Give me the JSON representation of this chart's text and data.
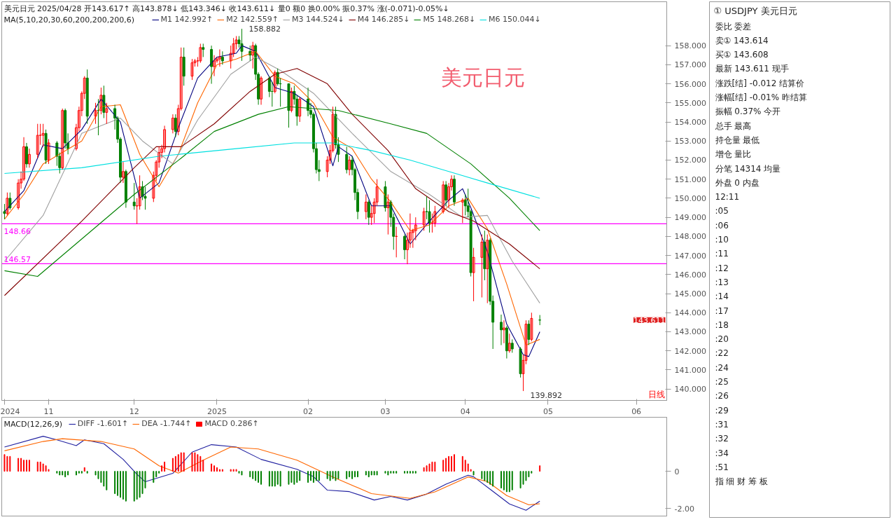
{
  "chart_data": [
    {
      "type": "candlestick",
      "title": "美元日元 2025/04/28 开143.617↑ 高143.878↓ 低143.346↓ 收143.611↓ 量0 额0 换0.00% 振0.37% 涨(-0.071)-0.05%↓",
      "legend_title": "MA(5,10,20,30,60,200,200,200,6)",
      "legend": "top left",
      "grid": false,
      "xlim": [
        "2024-10-15",
        "2025-06-13"
      ],
      "ylim": [
        139.4,
        160.3
      ],
      "xticks": [
        {
          "value": "2024-10-16",
          "label": "2024"
        },
        {
          "value": "2024-11-01",
          "label": "11"
        },
        {
          "value": "2024-12-02",
          "label": "12"
        },
        {
          "value": "2025-01-01",
          "label": "2025"
        },
        {
          "value": "2025-02-03",
          "label": "02"
        },
        {
          "value": "2025-03-03",
          "label": "03"
        },
        {
          "value": "2025-04-01",
          "label": "04"
        },
        {
          "value": "2025-05-01",
          "label": "05"
        },
        {
          "value": "2025-06-02",
          "label": "06"
        }
      ],
      "yticks": [
        {
          "value": 140,
          "label": "140.000"
        },
        {
          "value": 141,
          "label": "141.000"
        },
        {
          "value": 142,
          "label": "142.000"
        },
        {
          "value": 143,
          "label": "143.000"
        },
        {
          "value": 144,
          "label": "144.000"
        },
        {
          "value": 145,
          "label": "145.000"
        },
        {
          "value": 146,
          "label": "146.000"
        },
        {
          "value": 147,
          "label": "147.000"
        },
        {
          "value": 148,
          "label": "148.000"
        },
        {
          "value": 149,
          "label": "149.000"
        },
        {
          "value": 150,
          "label": "150.000"
        },
        {
          "value": 151,
          "label": "151.000"
        },
        {
          "value": 152,
          "label": "152.000"
        },
        {
          "value": 153,
          "label": "153.000"
        },
        {
          "value": 154,
          "label": "154.000"
        },
        {
          "value": 155,
          "label": "155.000"
        },
        {
          "value": 156,
          "label": "156.000"
        },
        {
          "value": 157,
          "label": "157.000"
        },
        {
          "value": 158,
          "label": "158.000"
        }
      ],
      "x": [
        "2024-10-16",
        "2024-10-17",
        "2024-10-18",
        "2024-10-21",
        "2024-10-22",
        "2024-10-23",
        "2024-10-24",
        "2024-10-25",
        "2024-10-28",
        "2024-10-29",
        "2024-10-30",
        "2024-10-31",
        "2024-11-01",
        "2024-11-04",
        "2024-11-05",
        "2024-11-06",
        "2024-11-07",
        "2024-11-08",
        "2024-11-11",
        "2024-11-12",
        "2024-11-13",
        "2024-11-14",
        "2024-11-15",
        "2024-11-18",
        "2024-11-19",
        "2024-11-20",
        "2024-11-21",
        "2024-11-22",
        "2024-11-25",
        "2024-11-26",
        "2024-11-27",
        "2024-11-28",
        "2024-11-29",
        "2024-12-02",
        "2024-12-03",
        "2024-12-04",
        "2024-12-05",
        "2024-12-06",
        "2024-12-09",
        "2024-12-10",
        "2024-12-11",
        "2024-12-12",
        "2024-12-13",
        "2024-12-16",
        "2024-12-17",
        "2024-12-18",
        "2024-12-19",
        "2024-12-20",
        "2024-12-23",
        "2024-12-24",
        "2024-12-25",
        "2024-12-26",
        "2024-12-27",
        "2024-12-30",
        "2024-12-31",
        "2025-01-01",
        "2025-01-02",
        "2025-01-03",
        "2025-01-06",
        "2025-01-07",
        "2025-01-08",
        "2025-01-09",
        "2025-01-10",
        "2025-01-13",
        "2025-01-14",
        "2025-01-15",
        "2025-01-16",
        "2025-01-17",
        "2025-01-20",
        "2025-01-21",
        "2025-01-22",
        "2025-01-23",
        "2025-01-24",
        "2025-01-27",
        "2025-01-28",
        "2025-01-29",
        "2025-01-30",
        "2025-01-31",
        "2025-02-03",
        "2025-02-04",
        "2025-02-05",
        "2025-02-06",
        "2025-02-07",
        "2025-02-10",
        "2025-02-11",
        "2025-02-12",
        "2025-02-13",
        "2025-02-14",
        "2025-02-17",
        "2025-02-18",
        "2025-02-19",
        "2025-02-20",
        "2025-02-21",
        "2025-02-24",
        "2025-02-25",
        "2025-02-26",
        "2025-02-27",
        "2025-02-28",
        "2025-03-03",
        "2025-03-04",
        "2025-03-05",
        "2025-03-06",
        "2025-03-07",
        "2025-03-10",
        "2025-03-11",
        "2025-03-12",
        "2025-03-13",
        "2025-03-14",
        "2025-03-17",
        "2025-03-18",
        "2025-03-19",
        "2025-03-20",
        "2025-03-21",
        "2025-03-24",
        "2025-03-25",
        "2025-03-26",
        "2025-03-27",
        "2025-03-28",
        "2025-03-31",
        "2025-04-01",
        "2025-04-02",
        "2025-04-03",
        "2025-04-04",
        "2025-04-07",
        "2025-04-08",
        "2025-04-09",
        "2025-04-10",
        "2025-04-11",
        "2025-04-14",
        "2025-04-15",
        "2025-04-16",
        "2025-04-17",
        "2025-04-18",
        "2025-04-21",
        "2025-04-22",
        "2025-04-23",
        "2025-04-24",
        "2025-04-25",
        "2025-04-28"
      ],
      "ohlc": [
        [
          149.3,
          149.7,
          148.9,
          149.2
        ],
        [
          149.2,
          150.3,
          149.1,
          150.0
        ],
        [
          150.0,
          150.3,
          149.4,
          149.5
        ],
        [
          149.5,
          151.0,
          149.4,
          150.8
        ],
        [
          150.8,
          151.4,
          150.5,
          151.0
        ],
        [
          151.0,
          153.2,
          150.9,
          152.7
        ],
        [
          152.7,
          152.9,
          151.6,
          151.8
        ],
        [
          151.8,
          152.6,
          151.6,
          152.3
        ],
        [
          152.3,
          153.9,
          152.1,
          153.3
        ],
        [
          153.3,
          153.9,
          152.8,
          153.3
        ],
        [
          153.3,
          153.9,
          152.7,
          153.4
        ],
        [
          153.4,
          153.6,
          151.8,
          152.0
        ],
        [
          152.0,
          153.1,
          151.8,
          152.9
        ],
        [
          152.9,
          153.0,
          151.7,
          152.2
        ],
        [
          152.2,
          152.4,
          151.3,
          151.6
        ],
        [
          151.6,
          154.7,
          151.5,
          154.6
        ],
        [
          154.6,
          154.7,
          152.6,
          152.9
        ],
        [
          152.9,
          153.4,
          152.3,
          152.6
        ],
        [
          152.6,
          153.9,
          152.5,
          153.7
        ],
        [
          153.7,
          154.8,
          153.5,
          154.6
        ],
        [
          154.6,
          155.6,
          154.3,
          155.5
        ],
        [
          155.5,
          156.4,
          155.2,
          156.3
        ],
        [
          156.3,
          156.75,
          153.9,
          154.3
        ],
        [
          154.3,
          155.0,
          153.9,
          154.6
        ],
        [
          154.6,
          155.2,
          153.3,
          154.6
        ],
        [
          154.6,
          155.8,
          154.4,
          155.4
        ],
        [
          155.4,
          155.9,
          154.2,
          154.5
        ],
        [
          154.5,
          155.0,
          153.9,
          154.7
        ],
        [
          154.7,
          154.9,
          153.6,
          154.2
        ],
        [
          154.2,
          154.3,
          152.9,
          153.1
        ],
        [
          153.1,
          153.2,
          150.8,
          151.1
        ],
        [
          151.1,
          151.9,
          150.8,
          151.4
        ],
        [
          151.4,
          151.5,
          149.5,
          149.8
        ],
        [
          149.8,
          150.8,
          149.4,
          149.6
        ],
        [
          149.6,
          150.0,
          148.65,
          149.6
        ],
        [
          149.6,
          151.2,
          149.4,
          150.6
        ],
        [
          150.6,
          150.9,
          149.9,
          150.1
        ],
        [
          150.1,
          150.6,
          149.4,
          150.0
        ],
        [
          150.0,
          151.4,
          149.8,
          151.2
        ],
        [
          151.2,
          152.0,
          150.9,
          151.9
        ],
        [
          151.9,
          152.7,
          151.6,
          152.4
        ],
        [
          152.4,
          152.8,
          152.1,
          152.6
        ],
        [
          152.6,
          153.8,
          152.4,
          153.6
        ],
        [
          153.6,
          154.4,
          153.4,
          154.2
        ],
        [
          154.2,
          154.4,
          153.2,
          153.5
        ],
        [
          153.5,
          154.9,
          153.3,
          154.7
        ],
        [
          154.7,
          157.9,
          154.6,
          157.4
        ],
        [
          157.4,
          157.9,
          155.9,
          156.4
        ],
        [
          156.4,
          157.3,
          156.2,
          157.1
        ],
        [
          157.1,
          157.3,
          156.9,
          157.2
        ],
        [
          157.2,
          157.4,
          156.9,
          157.2
        ],
        [
          157.2,
          158.1,
          157.1,
          157.9
        ],
        [
          157.9,
          158.1,
          157.4,
          157.8
        ],
        [
          157.8,
          158.0,
          156.0,
          156.9
        ],
        [
          156.9,
          157.5,
          156.4,
          157.2
        ],
        [
          157.2,
          157.4,
          157.1,
          157.3
        ],
        [
          157.3,
          157.8,
          156.9,
          157.4
        ],
        [
          157.4,
          157.7,
          157.0,
          157.2
        ],
        [
          157.2,
          158.0,
          156.8,
          157.6
        ],
        [
          157.6,
          158.4,
          157.4,
          158.1
        ],
        [
          158.1,
          158.5,
          157.8,
          158.3
        ],
        [
          158.3,
          158.5,
          157.9,
          158.1
        ],
        [
          158.1,
          158.882,
          157.2,
          157.7
        ],
        [
          157.7,
          158.0,
          157.2,
          157.5
        ],
        [
          157.5,
          158.2,
          156.8,
          158.0
        ],
        [
          158.0,
          158.1,
          156.2,
          156.5
        ],
        [
          156.5,
          156.6,
          154.9,
          155.2
        ],
        [
          155.2,
          156.4,
          154.9,
          156.3
        ],
        [
          156.3,
          156.4,
          155.3,
          155.6
        ],
        [
          155.6,
          156.1,
          154.8,
          155.6
        ],
        [
          155.6,
          156.7,
          155.5,
          156.6
        ],
        [
          156.6,
          156.8,
          155.9,
          156.0
        ],
        [
          156.0,
          156.3,
          154.8,
          156.0
        ],
        [
          156.0,
          156.0,
          153.7,
          154.6
        ],
        [
          154.6,
          155.8,
          154.5,
          155.6
        ],
        [
          155.6,
          155.9,
          154.9,
          155.2
        ],
        [
          155.2,
          155.4,
          153.8,
          154.3
        ],
        [
          154.3,
          155.3,
          154.0,
          155.2
        ],
        [
          155.2,
          155.8,
          154.3,
          154.6
        ],
        [
          154.6,
          155.0,
          154.2,
          154.4
        ],
        [
          154.4,
          154.5,
          152.4,
          152.6
        ],
        [
          152.6,
          152.9,
          151.3,
          151.5
        ],
        [
          151.5,
          152.0,
          150.9,
          151.4
        ],
        [
          151.4,
          152.2,
          151.1,
          152.0
        ],
        [
          152.0,
          152.8,
          151.8,
          152.5
        ],
        [
          152.5,
          154.8,
          152.4,
          154.4
        ],
        [
          154.4,
          154.8,
          152.6,
          152.8
        ],
        [
          152.8,
          153.2,
          151.9,
          152.3
        ],
        [
          152.3,
          152.7,
          151.3,
          151.5
        ],
        [
          151.5,
          152.2,
          151.2,
          152.0
        ],
        [
          152.0,
          152.2,
          151.2,
          151.5
        ],
        [
          151.5,
          151.6,
          149.9,
          150.3
        ],
        [
          150.3,
          150.5,
          148.9,
          149.3
        ],
        [
          149.3,
          150.2,
          148.9,
          149.8
        ],
        [
          149.8,
          149.9,
          148.6,
          149.0
        ],
        [
          149.0,
          149.6,
          148.6,
          149.2
        ],
        [
          149.2,
          150.0,
          148.7,
          149.8
        ],
        [
          149.8,
          151.0,
          149.6,
          150.6
        ],
        [
          150.6,
          150.9,
          149.3,
          149.5
        ],
        [
          149.5,
          150.2,
          148.1,
          149.8
        ],
        [
          149.8,
          149.9,
          148.5,
          149.0
        ],
        [
          149.0,
          149.2,
          147.3,
          148.0
        ],
        [
          148.0,
          148.5,
          146.9,
          148.0
        ],
        [
          148.0,
          148.1,
          146.8,
          147.3
        ],
        [
          147.3,
          148.2,
          146.54,
          147.8
        ],
        [
          147.8,
          149.2,
          147.4,
          148.2
        ],
        [
          148.2,
          148.4,
          147.4,
          148.3
        ],
        [
          148.3,
          149.0,
          147.8,
          148.6
        ],
        [
          148.6,
          149.5,
          148.3,
          149.3
        ],
        [
          149.3,
          150.1,
          148.9,
          149.3
        ],
        [
          149.3,
          149.9,
          148.2,
          148.7
        ],
        [
          148.7,
          149.2,
          148.2,
          148.7
        ],
        [
          148.7,
          149.6,
          148.5,
          149.3
        ],
        [
          149.3,
          150.9,
          149.2,
          150.7
        ],
        [
          150.7,
          150.9,
          149.6,
          149.9
        ],
        [
          149.9,
          150.8,
          149.5,
          150.6
        ],
        [
          150.6,
          151.2,
          150.4,
          151.0
        ],
        [
          151.0,
          151.2,
          149.6,
          149.8
        ],
        [
          149.8,
          150.0,
          148.7,
          149.9
        ],
        [
          149.9,
          150.2,
          149.1,
          149.6
        ],
        [
          149.6,
          150.5,
          149.0,
          149.3
        ],
        [
          149.3,
          149.4,
          145.9,
          146.1
        ],
        [
          146.1,
          147.4,
          144.6,
          146.9
        ],
        [
          146.9,
          148.1,
          144.8,
          147.7
        ],
        [
          147.7,
          148.3,
          145.7,
          146.3
        ],
        [
          146.3,
          148.1,
          144.5,
          147.8
        ],
        [
          147.8,
          147.9,
          144.4,
          144.6
        ],
        [
          144.6,
          144.9,
          142.1,
          143.5
        ],
        [
          143.5,
          143.9,
          142.3,
          143.1
        ],
        [
          143.1,
          143.6,
          142.4,
          143.2
        ],
        [
          143.2,
          143.3,
          141.6,
          142.0
        ],
        [
          142.0,
          142.9,
          141.9,
          142.4
        ],
        [
          142.4,
          142.6,
          141.9,
          142.1
        ],
        [
          142.1,
          142.2,
          140.6,
          140.8
        ],
        [
          140.8,
          141.8,
          139.892,
          141.5
        ],
        [
          141.5,
          143.6,
          141.3,
          143.4
        ],
        [
          143.4,
          143.6,
          142.3,
          142.6
        ],
        [
          142.6,
          144.0,
          142.5,
          143.7
        ],
        [
          143.617,
          143.878,
          143.346,
          143.611
        ]
      ],
      "colors": [
        "#008000",
        "#ff0000",
        "#008000",
        "#ff0000",
        "#ff0000",
        "#ff0000",
        "#008000",
        "#ff0000",
        "#ff0000",
        "#ff0000",
        "#ff0000",
        "#008000",
        "#ff0000",
        "#008000",
        "#008000",
        "#ff0000",
        "#008000",
        "#008000",
        "#ff0000",
        "#ff0000",
        "#ff0000",
        "#ff0000",
        "#008000",
        "#ff0000",
        "#008000",
        "#ff0000",
        "#008000",
        "#ff0000",
        "#008000",
        "#008000",
        "#008000",
        "#ff0000",
        "#008000",
        "#008000",
        "#ff0000",
        "#ff0000",
        "#008000",
        "#008000",
        "#ff0000",
        "#ff0000",
        "#ff0000",
        "#ff0000",
        "#ff0000",
        "#ff0000",
        "#008000",
        "#ff0000",
        "#ff0000",
        "#008000",
        "#ff0000",
        "#ff0000",
        "#ff0000",
        "#ff0000",
        "#008000",
        "#008000",
        "#ff0000",
        "#ff0000",
        "#ff0000",
        "#008000",
        "#ff0000",
        "#ff0000",
        "#ff0000",
        "#008000",
        "#008000",
        "#008000",
        "#ff0000",
        "#008000",
        "#008000",
        "#ff0000",
        "#008000",
        "#008000",
        "#ff0000",
        "#008000",
        "#008000",
        "#008000",
        "#ff0000",
        "#008000",
        "#008000",
        "#ff0000",
        "#008000",
        "#008000",
        "#008000",
        "#008000",
        "#008000",
        "#ff0000",
        "#ff0000",
        "#ff0000",
        "#008000",
        "#008000",
        "#008000",
        "#ff0000",
        "#008000",
        "#008000",
        "#008000",
        "#ff0000",
        "#008000",
        "#ff0000",
        "#ff0000",
        "#ff0000",
        "#008000",
        "#ff0000",
        "#008000",
        "#008000",
        "#ff0000",
        "#008000",
        "#ff0000",
        "#ff0000",
        "#ff0000",
        "#ff0000",
        "#ff0000",
        "#008000",
        "#008000",
        "#ff0000",
        "#ff0000",
        "#ff0000",
        "#008000",
        "#ff0000",
        "#ff0000",
        "#008000",
        "#ff0000",
        "#008000",
        "#008000",
        "#008000",
        "#ff0000",
        "#ff0000",
        "#008000",
        "#ff0000",
        "#008000",
        "#008000",
        "#008000",
        "#ff0000",
        "#008000",
        "#ff0000",
        "#008000",
        "#008000",
        "#ff0000",
        "#ff0000",
        "#008000",
        "#ff0000",
        "#008000"
      ],
      "series": [
        {
          "name": "M1 142.992↑",
          "type": "line",
          "color": "#00007f",
          "x": [
            "2024-10-16",
            "2024-10-23",
            "2024-10-30",
            "2024-11-06",
            "2024-11-13",
            "2024-11-20",
            "2024-11-27",
            "2024-12-04",
            "2024-12-11",
            "2024-12-18",
            "2024-12-25",
            "2025-01-01",
            "2025-01-08",
            "2025-01-10",
            "2025-01-15",
            "2025-01-22",
            "2025-01-29",
            "2025-02-05",
            "2025-02-12",
            "2025-02-14",
            "2025-02-19",
            "2025-02-26",
            "2025-03-05",
            "2025-03-12",
            "2025-03-19",
            "2025-03-26",
            "2025-03-31",
            "2025-04-03",
            "2025-04-09",
            "2025-04-16",
            "2025-04-22",
            "2025-04-24",
            "2025-04-28"
          ],
          "values": [
            149.3,
            150.4,
            152.8,
            152.6,
            153.6,
            155.2,
            154.0,
            150.0,
            150.8,
            153.7,
            156.3,
            157.4,
            157.6,
            158.0,
            157.7,
            155.8,
            155.5,
            154.8,
            151.7,
            152.7,
            152.2,
            149.6,
            149.6,
            147.6,
            148.8,
            149.9,
            150.5,
            149.5,
            147.2,
            143.4,
            141.8,
            141.7,
            143.0
          ]
        },
        {
          "name": "M2 142.559↑",
          "type": "line",
          "color": "#ff6600",
          "x": [
            "2024-10-16",
            "2024-10-23",
            "2024-10-30",
            "2024-11-06",
            "2024-11-13",
            "2024-11-20",
            "2024-11-27",
            "2024-12-04",
            "2024-12-11",
            "2024-12-18",
            "2024-12-25",
            "2025-01-01",
            "2025-01-08",
            "2025-01-15",
            "2025-01-22",
            "2025-01-29",
            "2025-02-05",
            "2025-02-12",
            "2025-02-19",
            "2025-02-26",
            "2025-03-05",
            "2025-03-12",
            "2025-03-19",
            "2025-03-26",
            "2025-04-02",
            "2025-04-09",
            "2025-04-16",
            "2025-04-23",
            "2025-04-28"
          ],
          "values": [
            148.9,
            150.2,
            151.8,
            152.4,
            153.0,
            154.8,
            154.9,
            152.3,
            150.6,
            152.3,
            155.0,
            157.0,
            157.3,
            157.7,
            156.4,
            156.0,
            155.0,
            153.2,
            152.6,
            151.0,
            149.8,
            148.3,
            148.6,
            149.6,
            150.0,
            148.4,
            145.5,
            142.3,
            142.6
          ]
        },
        {
          "name": "M3 144.524↓",
          "type": "line",
          "color": "#a0a0a0",
          "x": [
            "2024-10-16",
            "2024-10-30",
            "2024-11-13",
            "2024-11-27",
            "2024-12-05",
            "2024-12-16",
            "2024-12-25",
            "2025-01-06",
            "2025-01-15",
            "2025-01-24",
            "2025-02-05",
            "2025-02-19",
            "2025-03-05",
            "2025-03-19",
            "2025-03-31",
            "2025-04-09",
            "2025-04-18",
            "2025-04-28"
          ],
          "values": [
            146.7,
            149.1,
            153.4,
            154.2,
            153.0,
            151.8,
            154.1,
            156.5,
            157.4,
            156.7,
            155.5,
            153.4,
            151.4,
            150.2,
            149.0,
            149.1,
            146.7,
            144.5
          ]
        },
        {
          "name": "M4 146.285↓",
          "type": "line",
          "color": "#800000",
          "x": [
            "2024-10-16",
            "2024-11-13",
            "2024-12-02",
            "2024-12-10",
            "2024-12-19",
            "2024-12-31",
            "2025-01-13",
            "2025-01-22",
            "2025-01-30",
            "2025-02-10",
            "2025-02-19",
            "2025-03-04",
            "2025-03-14",
            "2025-03-26",
            "2025-04-04",
            "2025-04-17",
            "2025-04-28"
          ],
          "values": [
            144.9,
            148.8,
            151.6,
            152.7,
            152.7,
            153.9,
            155.6,
            156.5,
            156.8,
            156.0,
            154.4,
            152.5,
            150.5,
            149.3,
            148.8,
            147.6,
            146.3
          ]
        },
        {
          "name": "M5 148.268↓",
          "type": "line",
          "color": "#008000",
          "x": [
            "2024-10-16",
            "2024-10-28",
            "2024-12-02",
            "2024-12-19",
            "2024-12-31",
            "2025-01-16",
            "2025-01-27",
            "2025-02-14",
            "2025-03-05",
            "2025-03-18",
            "2025-04-03",
            "2025-04-17",
            "2025-04-28"
          ],
          "values": [
            146.2,
            145.9,
            150.2,
            152.1,
            153.5,
            154.4,
            154.8,
            154.6,
            153.9,
            153.4,
            151.8,
            150.0,
            148.3
          ]
        },
        {
          "name": "M6 150.044↓",
          "type": "line",
          "color": "#00e0e0",
          "x": [
            "2024-10-16",
            "2024-11-13",
            "2024-12-11",
            "2025-01-08",
            "2025-01-29",
            "2025-02-12",
            "2025-02-26",
            "2025-03-12",
            "2025-03-26",
            "2025-04-09",
            "2025-04-28"
          ],
          "values": [
            151.3,
            151.6,
            152.2,
            152.6,
            152.9,
            152.9,
            152.5,
            152.0,
            151.4,
            150.8,
            150.0
          ]
        }
      ],
      "ref_lines": [
        {
          "axis": "y",
          "value": 148.66,
          "label": "148.66",
          "color": "#ff00ff"
        },
        {
          "axis": "y",
          "value": 146.57,
          "label": "146.57",
          "color": "#ff00ff"
        }
      ],
      "annotations": [
        "美元日元",
        "日线",
        {
          "text": "158.882",
          "x": "2025-01-10",
          "y": 158.882
        },
        {
          "text": "139.892",
          "x": "2025-04-22",
          "y": 139.892
        },
        "143.611"
      ]
    },
    {
      "type": "bar",
      "legend_title": "MACD(12,26,9)",
      "legend": "top left",
      "grid": false,
      "tick_labels": "y",
      "xlim": [
        "2024-10-15",
        "2025-06-13"
      ],
      "ylim": [
        -2.4,
        2.9
      ],
      "yticks": [
        0,
        {
          "value": -2,
          "label": "-2.00"
        }
      ],
      "x": [
        "2024-10-16",
        "2024-10-17",
        "2024-10-18",
        "2024-10-21",
        "2024-10-22",
        "2024-10-23",
        "2024-10-24",
        "2024-10-25",
        "2024-10-28",
        "2024-10-29",
        "2024-10-30",
        "2024-10-31",
        "2024-11-01",
        "2024-11-04",
        "2024-11-05",
        "2024-11-06",
        "2024-11-07",
        "2024-11-08",
        "2024-11-11",
        "2024-11-12",
        "2024-11-13",
        "2024-11-14",
        "2024-11-15",
        "2024-11-18",
        "2024-11-19",
        "2024-11-20",
        "2024-11-21",
        "2024-11-22",
        "2024-11-25",
        "2024-11-26",
        "2024-11-27",
        "2024-11-28",
        "2024-11-29",
        "2024-12-02",
        "2024-12-03",
        "2024-12-04",
        "2024-12-05",
        "2024-12-06",
        "2024-12-09",
        "2024-12-10",
        "2024-12-11",
        "2024-12-12",
        "2024-12-13",
        "2024-12-16",
        "2024-12-17",
        "2024-12-18",
        "2024-12-19",
        "2024-12-20",
        "2024-12-23",
        "2024-12-24",
        "2024-12-25",
        "2024-12-26",
        "2024-12-27",
        "2024-12-30",
        "2024-12-31",
        "2025-01-01",
        "2025-01-02",
        "2025-01-03",
        "2025-01-06",
        "2025-01-07",
        "2025-01-08",
        "2025-01-09",
        "2025-01-10",
        "2025-01-13",
        "2025-01-14",
        "2025-01-15",
        "2025-01-16",
        "2025-01-17",
        "2025-01-20",
        "2025-01-21",
        "2025-01-22",
        "2025-01-23",
        "2025-01-24",
        "2025-01-27",
        "2025-01-28",
        "2025-01-29",
        "2025-01-30",
        "2025-01-31",
        "2025-02-03",
        "2025-02-04",
        "2025-02-05",
        "2025-02-06",
        "2025-02-07",
        "2025-02-10",
        "2025-02-11",
        "2025-02-12",
        "2025-02-13",
        "2025-02-14",
        "2025-02-17",
        "2025-02-18",
        "2025-02-19",
        "2025-02-20",
        "2025-02-21",
        "2025-02-24",
        "2025-02-25",
        "2025-02-26",
        "2025-02-27",
        "2025-02-28",
        "2025-03-03",
        "2025-03-04",
        "2025-03-05",
        "2025-03-06",
        "2025-03-07",
        "2025-03-10",
        "2025-03-11",
        "2025-03-12",
        "2025-03-13",
        "2025-03-14",
        "2025-03-17",
        "2025-03-18",
        "2025-03-19",
        "2025-03-20",
        "2025-03-21",
        "2025-03-24",
        "2025-03-25",
        "2025-03-26",
        "2025-03-27",
        "2025-03-28",
        "2025-03-31",
        "2025-04-01",
        "2025-04-02",
        "2025-04-03",
        "2025-04-04",
        "2025-04-07",
        "2025-04-08",
        "2025-04-09",
        "2025-04-10",
        "2025-04-11",
        "2025-04-14",
        "2025-04-15",
        "2025-04-16",
        "2025-04-17",
        "2025-04-18",
        "2025-04-21",
        "2025-04-22",
        "2025-04-23",
        "2025-04-24",
        "2025-04-25",
        "2025-04-28"
      ],
      "series": [
        {
          "name": "DIFF -1.601↑",
          "type": "line",
          "color": "#2020a0",
          "x": [
            "2024-10-16",
            "2024-10-30",
            "2024-11-04",
            "2024-11-11",
            "2024-11-14",
            "2024-11-21",
            "2024-11-28",
            "2024-12-03",
            "2024-12-06",
            "2024-12-16",
            "2024-12-23",
            "2024-12-30",
            "2025-01-08",
            "2025-01-17",
            "2025-01-30",
            "2025-02-05",
            "2025-02-10",
            "2025-02-18",
            "2025-02-27",
            "2025-03-05",
            "2025-03-11",
            "2025-03-18",
            "2025-03-25",
            "2025-04-02",
            "2025-04-04",
            "2025-04-10",
            "2025-04-17",
            "2025-04-23",
            "2025-04-28"
          ],
          "values": [
            1.3,
            1.88,
            1.69,
            1.38,
            1.69,
            1.48,
            0.64,
            -0.16,
            -0.56,
            -0.11,
            1.03,
            1.43,
            1.3,
            0.64,
            0.11,
            -0.29,
            -1.01,
            -1.09,
            -1.54,
            -1.35,
            -1.54,
            -1.22,
            -0.69,
            -0.21,
            -0.29,
            -0.96,
            -1.75,
            -2.09,
            -1.6
          ]
        },
        {
          "name": "DEA -1.744↑",
          "type": "line",
          "color": "#ff6600",
          "x": [
            "2024-10-16",
            "2024-10-30",
            "2024-11-06",
            "2024-11-20",
            "2024-12-02",
            "2024-12-11",
            "2024-12-18",
            "2024-12-27",
            "2025-01-06",
            "2025-01-16",
            "2025-01-30",
            "2025-02-12",
            "2025-02-26",
            "2025-03-12",
            "2025-03-21",
            "2025-04-02",
            "2025-04-09",
            "2025-04-16",
            "2025-04-24",
            "2025-04-28"
          ],
          "values": [
            1.1,
            1.6,
            1.75,
            1.6,
            1.2,
            0.3,
            -0.1,
            0.6,
            1.3,
            1.2,
            0.6,
            -0.3,
            -1.2,
            -1.45,
            -1.1,
            -0.3,
            -0.55,
            -1.3,
            -1.8,
            -1.74
          ]
        },
        {
          "name": "MACD 0.286↑",
          "type": "bar",
          "color": "#ff0000",
          "values": [
            0.9,
            0.8,
            0.8,
            0.7,
            0.7,
            0.6,
            0.6,
            0.6,
            0.5,
            0.5,
            0.4,
            0.3,
            0.1,
            null,
            null,
            null,
            null,
            null,
            null,
            null,
            null,
            0.2,
            null,
            null,
            null,
            null,
            null,
            null,
            null,
            null,
            null,
            null,
            null,
            null,
            null,
            null,
            null,
            null,
            null,
            null,
            null,
            0.3,
            0.5,
            0.7,
            0.8,
            0.9,
            1.0,
            1.0,
            1.0,
            1.0,
            0.9,
            0.8,
            0.6,
            0.4,
            0.3,
            0.2,
            0.1,
            0.1,
            0.1,
            0.1,
            0.1,
            null,
            null,
            null,
            null,
            null,
            null,
            null,
            null,
            null,
            null,
            null,
            null,
            null,
            null,
            null,
            null,
            null,
            null,
            null,
            null,
            null,
            null,
            null,
            null,
            null,
            null,
            null,
            null,
            null,
            null,
            null,
            null,
            null,
            null,
            null,
            null,
            null,
            null,
            null,
            null,
            null,
            null,
            null,
            null,
            null,
            null,
            null,
            0.2,
            0.3,
            0.4,
            0.5,
            0.5,
            0.6,
            0.7,
            0.8,
            0.8,
            0.9,
            0.8,
            0.6,
            0.4,
            0.1,
            null,
            null,
            null,
            null,
            null,
            null,
            null,
            null,
            null,
            null,
            null,
            null,
            null,
            null,
            null,
            null,
            0.3
          ]
        },
        {
          "type": "bar",
          "color": "#008000",
          "values": [
            null,
            null,
            null,
            null,
            null,
            null,
            null,
            null,
            null,
            null,
            null,
            null,
            null,
            -0.1,
            -0.2,
            -0.2,
            -0.3,
            -0.2,
            -0.2,
            -0.1,
            -0.1,
            null,
            -0.1,
            -0.2,
            -0.4,
            -0.6,
            -0.8,
            -1.0,
            -1.2,
            -1.3,
            -1.4,
            -1.5,
            -1.6,
            -1.6,
            -1.5,
            -1.4,
            -1.2,
            -0.9,
            -0.6,
            -0.3,
            -0.1,
            null,
            null,
            null,
            null,
            null,
            null,
            null,
            null,
            null,
            null,
            null,
            null,
            null,
            null,
            null,
            null,
            null,
            null,
            null,
            null,
            -0.1,
            -0.2,
            -0.3,
            -0.4,
            -0.5,
            -0.6,
            -0.7,
            -0.8,
            -0.8,
            -0.8,
            -0.7,
            -0.8,
            -0.7,
            -0.6,
            -0.7,
            -0.6,
            -0.5,
            -0.6,
            -0.5,
            -0.6,
            -0.5,
            -0.5,
            -0.4,
            -0.5,
            -0.4,
            -0.5,
            -0.4,
            -0.4,
            -0.3,
            -0.4,
            -0.3,
            -0.3,
            -0.2,
            -0.3,
            -0.2,
            -0.2,
            -0.2,
            -0.1,
            -0.2,
            -0.1,
            -0.1,
            -0.1,
            -0.1,
            -0.1,
            -0.1,
            -0.1,
            -0.1,
            null,
            null,
            null,
            null,
            null,
            null,
            null,
            null,
            null,
            null,
            null,
            null,
            null,
            null,
            -0.2,
            -0.4,
            -0.5,
            -0.6,
            -0.7,
            -0.8,
            -0.9,
            -1.0,
            -1.1,
            -1.1,
            -1.0,
            -0.9,
            -0.7,
            -0.5,
            -0.3,
            -0.1,
            null
          ]
        }
      ]
    },
    {
      "type": "other",
      "title": "① USDJPY 美元日元",
      "annotations": [
        "委比 委差",
        "卖① 143.614",
        "买① 143.608",
        "最新 143.611 现手",
        "涨跌[结] -0.012 结算价",
        "涨幅[结] -0.01% 昨结算",
        "振幅 0.37% 今开",
        "总手 最高",
        "持仓量 最低",
        "增仓 量比",
        "分笔 14314 均量",
        "外盘 0 内盘",
        "12:11",
        ":05",
        ":06",
        ":10",
        ":11",
        ":12",
        ":13",
        ":14",
        ":17",
        ":18",
        ":20",
        ":22",
        ":24",
        ":25",
        ":26",
        ":29",
        ":31",
        ":32",
        ":34",
        ":51",
        "指 细 财 筹 板"
      ]
    }
  ]
}
